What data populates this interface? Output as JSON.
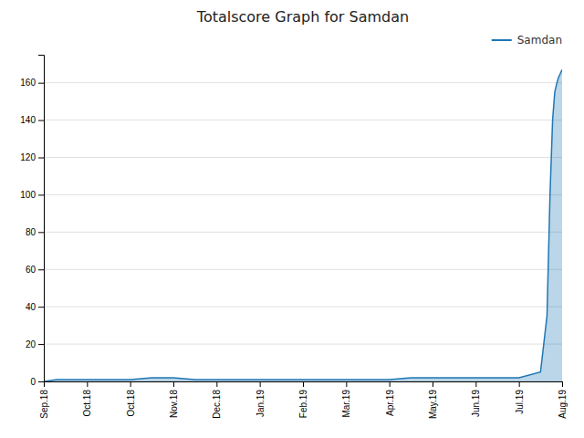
{
  "chart_data": {
    "type": "area",
    "title": "Totalscore Graph for Samdan",
    "x": [
      0,
      0.3,
      0.7,
      1.0,
      1.5,
      2.0,
      2.5,
      2.8,
      3.0,
      3.5,
      4.0,
      4.5,
      5.0,
      5.5,
      6.0,
      6.5,
      7.0,
      7.5,
      8.0,
      8.5,
      9.0,
      9.5,
      10.0,
      10.5,
      11.0,
      11.5,
      11.65,
      11.72,
      11.78,
      11.83,
      11.88,
      11.92,
      11.96,
      12.0
    ],
    "series": [
      {
        "name": "Samdan",
        "values": [
          0,
          1,
          1,
          1,
          1,
          1,
          2,
          2,
          2,
          1,
          1,
          1,
          1,
          1,
          1,
          1,
          1,
          1,
          1,
          2,
          2,
          2,
          2,
          2,
          2,
          5,
          35,
          100,
          140,
          155,
          160,
          163,
          165,
          167
        ]
      }
    ],
    "xlim": [
      0,
      12
    ],
    "xticks": [
      {
        "value": 0,
        "label": "Sep.18"
      },
      {
        "value": 1,
        "label": "Oct.18"
      },
      {
        "value": 2,
        "label": "Oct.18"
      },
      {
        "value": 3,
        "label": "Nov.18"
      },
      {
        "value": 4,
        "label": "Dec.18"
      },
      {
        "value": 5,
        "label": "Jan.19"
      },
      {
        "value": 6,
        "label": "Feb.19"
      },
      {
        "value": 7,
        "label": "Mar.19"
      },
      {
        "value": 8,
        "label": "Apr.19"
      },
      {
        "value": 9,
        "label": "May.19"
      },
      {
        "value": 10,
        "label": "Jun.19"
      },
      {
        "value": 11,
        "label": "Jul.19"
      },
      {
        "value": 12,
        "label": "Aug.19"
      }
    ],
    "ylim": [
      0,
      175
    ],
    "yticks": [
      0,
      20,
      40,
      60,
      80,
      100,
      120,
      140,
      160
    ],
    "grid": true,
    "legend": "upper right"
  }
}
